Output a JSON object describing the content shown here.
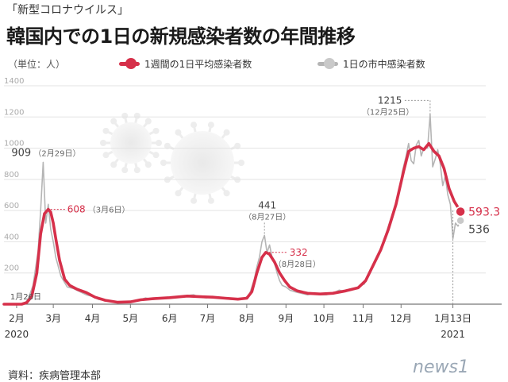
{
  "header": {
    "series_tag": "「新型コロナウイルス」",
    "title": "韓国内での1日の新規感染者数の年間推移",
    "unit": "（単位：人）"
  },
  "legend": {
    "avg_label": "1週間の1日平均感染者数",
    "daily_label": "1日の市中感染者数",
    "avg_color": "#d6304a",
    "daily_color": "#b5b5b5"
  },
  "source": "資料：疾病管理本部",
  "logo": "news1",
  "chart_data": {
    "type": "line",
    "title": "韓国内での1日の新規感染者数の年間推移",
    "xlabel": "",
    "ylabel": "（単位：人）",
    "ylim": [
      0,
      1400
    ],
    "yticks": [
      0,
      200,
      400,
      600,
      800,
      1000,
      1200,
      1400
    ],
    "grid": true,
    "x_domain": [
      0,
      381
    ],
    "x_ticks": [
      {
        "x": 10,
        "label": "2月",
        "year": "2020"
      },
      {
        "x": 39,
        "label": "3月"
      },
      {
        "x": 70,
        "label": "4月"
      },
      {
        "x": 100,
        "label": "5月"
      },
      {
        "x": 131,
        "label": "6月"
      },
      {
        "x": 161,
        "label": "7月"
      },
      {
        "x": 192,
        "label": "8月"
      },
      {
        "x": 223,
        "label": "9月"
      },
      {
        "x": 253,
        "label": "10月"
      },
      {
        "x": 284,
        "label": "11月"
      },
      {
        "x": 314,
        "label": "12月"
      },
      {
        "x": 355,
        "label": "1月13日",
        "year": "2021"
      }
    ],
    "series": [
      {
        "name": "1日の市中感染者数",
        "color": "#b5b5b5",
        "points": [
          [
            0,
            0
          ],
          [
            6,
            0
          ],
          [
            14,
            0
          ],
          [
            16,
            3
          ],
          [
            19,
            30
          ],
          [
            23,
            120
          ],
          [
            27,
            340
          ],
          [
            29,
            600
          ],
          [
            31,
            909
          ],
          [
            33,
            520
          ],
          [
            35,
            640
          ],
          [
            37,
            480
          ],
          [
            39,
            400
          ],
          [
            41,
            300
          ],
          [
            45,
            180
          ],
          [
            50,
            110
          ],
          [
            55,
            100
          ],
          [
            60,
            80
          ],
          [
            65,
            60
          ],
          [
            70,
            50
          ],
          [
            75,
            30
          ],
          [
            80,
            25
          ],
          [
            85,
            15
          ],
          [
            90,
            10
          ],
          [
            95,
            10
          ],
          [
            100,
            15
          ],
          [
            105,
            25
          ],
          [
            108,
            30
          ],
          [
            112,
            40
          ],
          [
            118,
            30
          ],
          [
            125,
            40
          ],
          [
            131,
            45
          ],
          [
            140,
            50
          ],
          [
            150,
            60
          ],
          [
            155,
            45
          ],
          [
            160,
            40
          ],
          [
            165,
            50
          ],
          [
            170,
            40
          ],
          [
            175,
            35
          ],
          [
            180,
            30
          ],
          [
            185,
            30
          ],
          [
            190,
            35
          ],
          [
            194,
            60
          ],
          [
            198,
            160
          ],
          [
            200,
            240
          ],
          [
            202,
            300
          ],
          [
            204,
            400
          ],
          [
            206,
            441
          ],
          [
            208,
            330
          ],
          [
            210,
            380
          ],
          [
            212,
            300
          ],
          [
            214,
            260
          ],
          [
            216,
            200
          ],
          [
            218,
            150
          ],
          [
            220,
            120
          ],
          [
            223,
            110
          ],
          [
            226,
            90
          ],
          [
            230,
            80
          ],
          [
            235,
            70
          ],
          [
            240,
            60
          ],
          [
            245,
            70
          ],
          [
            250,
            60
          ],
          [
            255,
            60
          ],
          [
            260,
            70
          ],
          [
            265,
            90
          ],
          [
            270,
            80
          ],
          [
            275,
            90
          ],
          [
            280,
            110
          ],
          [
            285,
            130
          ],
          [
            288,
            190
          ],
          [
            292,
            250
          ],
          [
            295,
            300
          ],
          [
            298,
            350
          ],
          [
            300,
            400
          ],
          [
            304,
            500
          ],
          [
            308,
            600
          ],
          [
            312,
            700
          ],
          [
            315,
            850
          ],
          [
            318,
            950
          ],
          [
            320,
            1030
          ],
          [
            322,
            920
          ],
          [
            324,
            900
          ],
          [
            326,
            1020
          ],
          [
            328,
            1050
          ],
          [
            330,
            950
          ],
          [
            332,
            1000
          ],
          [
            335,
            1000
          ],
          [
            337,
            1215
          ],
          [
            339,
            880
          ],
          [
            341,
            930
          ],
          [
            343,
            990
          ],
          [
            345,
            900
          ],
          [
            347,
            760
          ],
          [
            349,
            820
          ],
          [
            351,
            700
          ],
          [
            353,
            640
          ],
          [
            355,
            420
          ],
          [
            357,
            520
          ],
          [
            359,
            500
          ],
          [
            361,
            536
          ]
        ]
      },
      {
        "name": "1週間の1日平均感染者数",
        "color": "#d6304a",
        "points": [
          [
            0,
            0
          ],
          [
            14,
            0
          ],
          [
            18,
            10
          ],
          [
            22,
            50
          ],
          [
            26,
            200
          ],
          [
            29,
            450
          ],
          [
            32,
            580
          ],
          [
            35,
            608
          ],
          [
            37,
            590
          ],
          [
            39,
            520
          ],
          [
            41,
            420
          ],
          [
            44,
            280
          ],
          [
            48,
            160
          ],
          [
            52,
            120
          ],
          [
            58,
            95
          ],
          [
            65,
            75
          ],
          [
            72,
            45
          ],
          [
            80,
            25
          ],
          [
            90,
            12
          ],
          [
            100,
            15
          ],
          [
            108,
            28
          ],
          [
            118,
            35
          ],
          [
            131,
            42
          ],
          [
            145,
            52
          ],
          [
            155,
            48
          ],
          [
            165,
            45
          ],
          [
            175,
            38
          ],
          [
            185,
            32
          ],
          [
            192,
            38
          ],
          [
            196,
            80
          ],
          [
            200,
            200
          ],
          [
            204,
            300
          ],
          [
            207,
            332
          ],
          [
            210,
            320
          ],
          [
            214,
            270
          ],
          [
            218,
            200
          ],
          [
            222,
            150
          ],
          [
            226,
            110
          ],
          [
            232,
            85
          ],
          [
            240,
            70
          ],
          [
            250,
            65
          ],
          [
            260,
            70
          ],
          [
            270,
            85
          ],
          [
            280,
            105
          ],
          [
            286,
            150
          ],
          [
            292,
            250
          ],
          [
            298,
            350
          ],
          [
            304,
            480
          ],
          [
            310,
            640
          ],
          [
            316,
            850
          ],
          [
            320,
            980
          ],
          [
            324,
            1000
          ],
          [
            328,
            1010
          ],
          [
            332,
            990
          ],
          [
            336,
            1030
          ],
          [
            340,
            980
          ],
          [
            344,
            950
          ],
          [
            348,
            870
          ],
          [
            352,
            740
          ],
          [
            356,
            660
          ],
          [
            359,
            620
          ],
          [
            361,
            593.3
          ]
        ]
      }
    ],
    "annotations": [
      {
        "id": "daily-peak-feb",
        "value": "909",
        "date": "（2月29日）",
        "x": 31,
        "y": 909,
        "series": "daily"
      },
      {
        "id": "avg-peak-mar",
        "value": "608",
        "date": "（3月6日）",
        "x": 35,
        "y": 608,
        "series": "avg"
      },
      {
        "id": "daily-peak-aug",
        "value": "441",
        "date": "（8月27日）",
        "x": 206,
        "y": 441,
        "series": "daily"
      },
      {
        "id": "avg-peak-aug",
        "value": "332",
        "date": "（8月28日）",
        "x": 207,
        "y": 332,
        "series": "avg"
      },
      {
        "id": "daily-peak-dec",
        "value": "1215",
        "date": "（12月25日）",
        "x": 337,
        "y": 1215,
        "series": "daily"
      },
      {
        "id": "first-case",
        "value": "1月26日",
        "x": 10,
        "y": 0,
        "series": "none"
      },
      {
        "id": "avg-latest",
        "value": "593.3",
        "x": 361,
        "y": 593.3,
        "series": "avg"
      },
      {
        "id": "daily-latest",
        "value": "536",
        "x": 361,
        "y": 536,
        "series": "daily"
      }
    ]
  }
}
